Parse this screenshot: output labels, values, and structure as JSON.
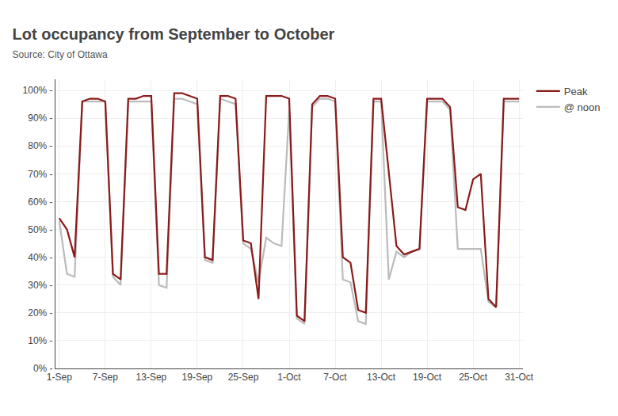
{
  "chart_data": {
    "type": "line",
    "title": "Lot occupancy from September to October",
    "subtitle": "Source: City of Ottawa",
    "categories": [
      "1-Sep",
      null,
      null,
      null,
      null,
      null,
      "7-Sep",
      null,
      null,
      null,
      null,
      null,
      "13-Sep",
      null,
      null,
      null,
      null,
      null,
      "19-Sep",
      null,
      null,
      null,
      null,
      null,
      "25-Sep",
      null,
      null,
      null,
      null,
      null,
      "1-Oct",
      null,
      null,
      null,
      null,
      null,
      "7-Oct",
      null,
      null,
      null,
      null,
      null,
      "13-Oct",
      null,
      null,
      null,
      null,
      null,
      "19-Oct",
      null,
      null,
      null,
      null,
      null,
      "25-Oct",
      null,
      null,
      null,
      null,
      null,
      "31-Oct"
    ],
    "series": [
      {
        "name": "Peak",
        "color": "#8B1A1A",
        "values": [
          54,
          50,
          40,
          96,
          97,
          97,
          96,
          34,
          32,
          97,
          97,
          98,
          98,
          34,
          34,
          99,
          99,
          98,
          97,
          40,
          39,
          98,
          98,
          97,
          46,
          45,
          25,
          98,
          98,
          98,
          97,
          19,
          17,
          95,
          98,
          98,
          97,
          40,
          38,
          21,
          20,
          97,
          97,
          70,
          44,
          41,
          42,
          43,
          97,
          97,
          97,
          94,
          58,
          57,
          68,
          70,
          25,
          22,
          97,
          97,
          97
        ]
      },
      {
        "name": "@ noon",
        "color": "#BBBBBB",
        "values": [
          53,
          34,
          33,
          96,
          96,
          96,
          96,
          33,
          30,
          96,
          96,
          96,
          96,
          30,
          29,
          97,
          97,
          96,
          95,
          39,
          38,
          97,
          96,
          95,
          45,
          43,
          31,
          47,
          45,
          44,
          93,
          18,
          16,
          94,
          97,
          97,
          96,
          32,
          31,
          17,
          16,
          96,
          96,
          32,
          42,
          40,
          42,
          43,
          96,
          96,
          96,
          93,
          43,
          43,
          43,
          43,
          24,
          22,
          96,
          96,
          96
        ]
      }
    ],
    "ylim": [
      0,
      104
    ],
    "yticks": [
      {
        "value": 0,
        "label": "0% -"
      },
      {
        "value": 10,
        "label": "10% -"
      },
      {
        "value": 20,
        "label": "20% -"
      },
      {
        "value": 30,
        "label": "30% -"
      },
      {
        "value": 40,
        "label": "40% -"
      },
      {
        "value": 50,
        "label": "50% -"
      },
      {
        "value": 60,
        "label": "60% -"
      },
      {
        "value": 70,
        "label": "70% -"
      },
      {
        "value": 80,
        "label": "80% -"
      },
      {
        "value": 90,
        "label": "90% -"
      },
      {
        "value": 100,
        "label": "100% -"
      }
    ],
    "grid": true,
    "legend": "right"
  }
}
